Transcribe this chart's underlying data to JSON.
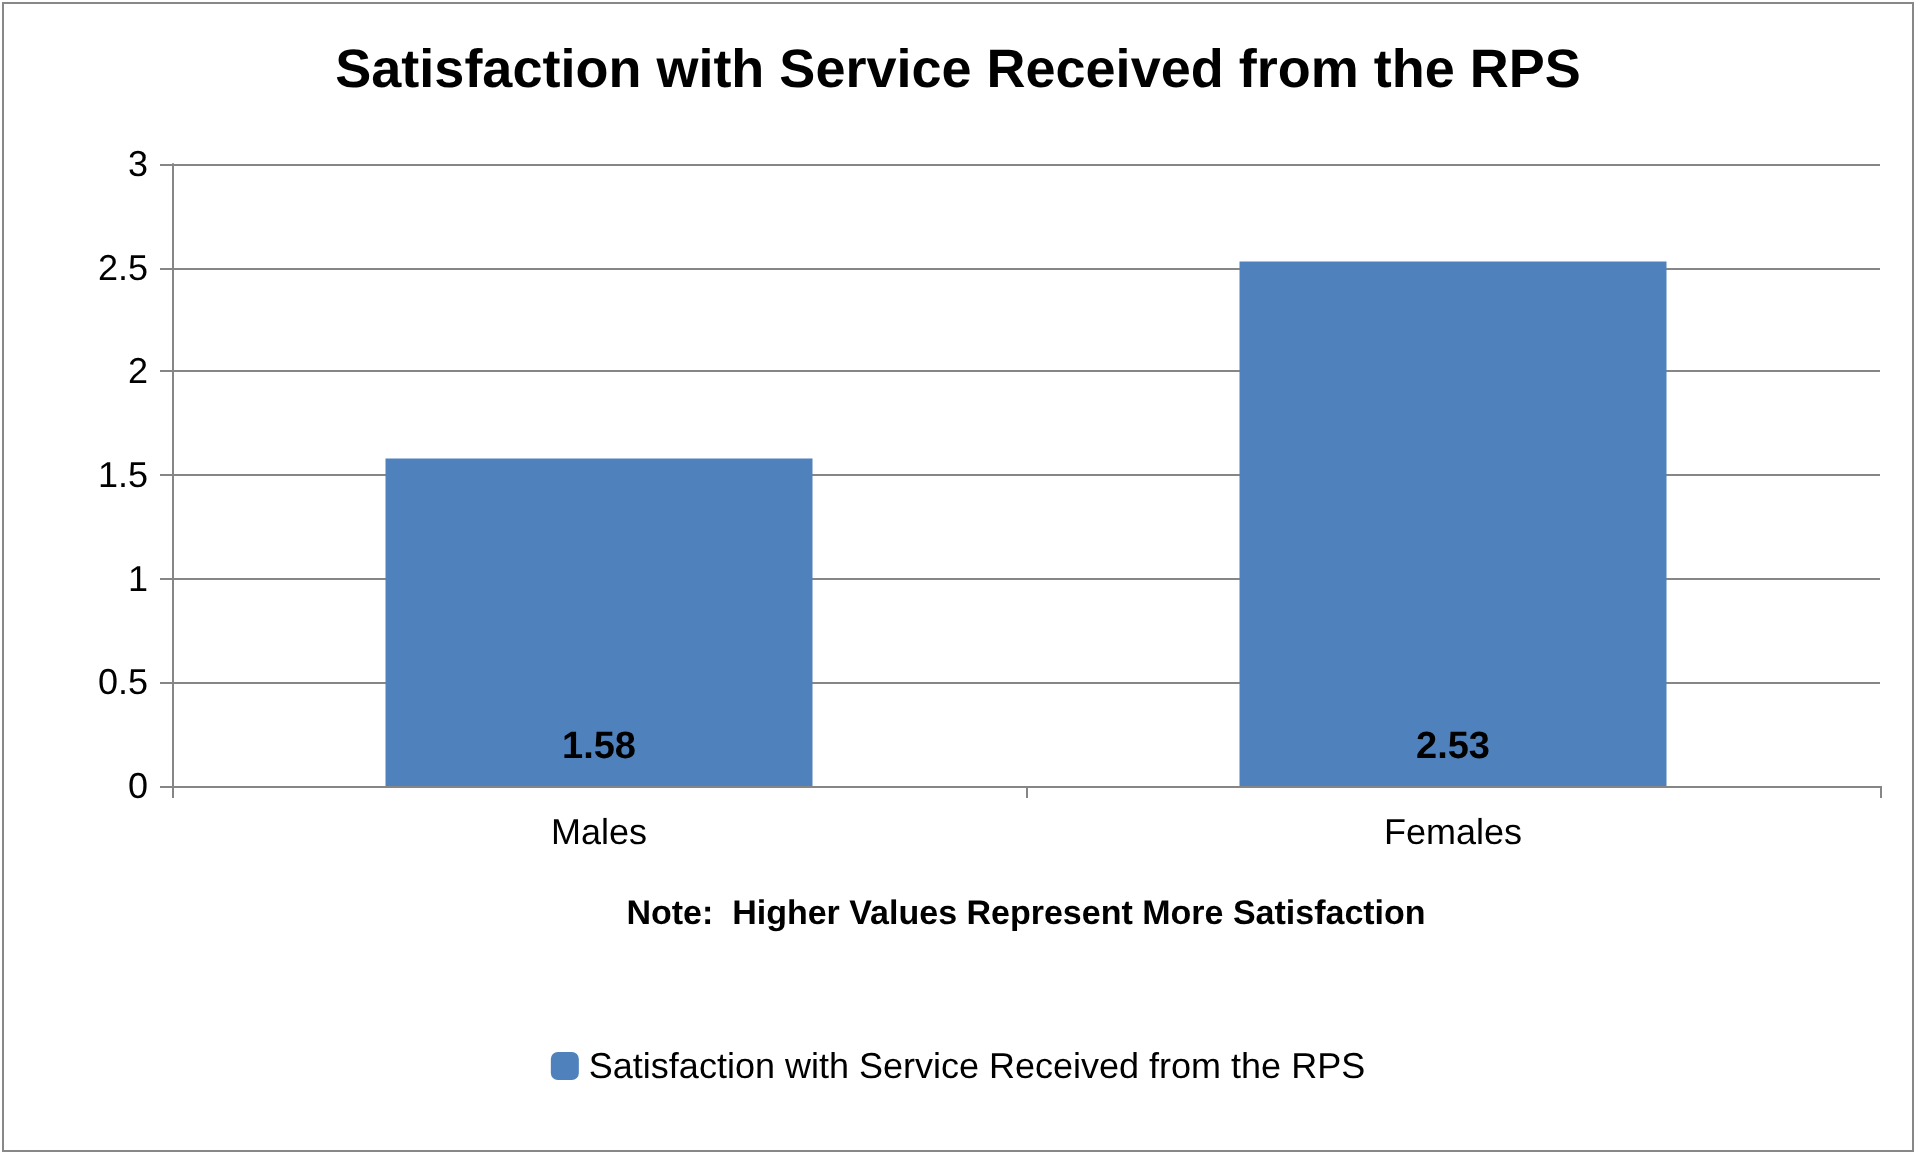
{
  "chart_data": {
    "type": "bar",
    "title": "Satisfaction with Service Received from the RPS",
    "xlabel": "Note:  Higher Values Represent More Satisfaction",
    "categories": [
      "Males",
      "Females"
    ],
    "series": [
      {
        "name": "Satisfaction with Service Received from the RPS",
        "color": "#4f81bd",
        "values": [
          1.58,
          2.53
        ]
      }
    ],
    "ylim": [
      0,
      3
    ],
    "yticks": [
      0,
      0.5,
      1,
      1.5,
      2,
      2.5,
      3
    ],
    "grid": "y",
    "legend": "bottom",
    "data_labels": true
  }
}
